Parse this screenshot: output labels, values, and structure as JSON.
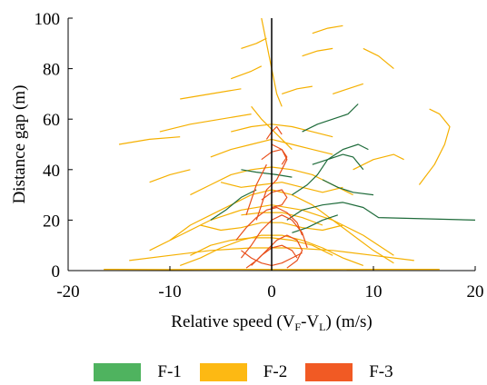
{
  "chart_data": {
    "type": "line",
    "xlabel": "Relative speed (V_F-V_L) (m/s)",
    "ylabel": "Distance gap (m)",
    "xlim": [
      -20,
      20
    ],
    "ylim": [
      0,
      100
    ],
    "x_ticks": [
      -20,
      -10,
      0,
      10,
      20
    ],
    "y_ticks": [
      0,
      20,
      40,
      60,
      80,
      100
    ],
    "x_tick_labels": [
      "-20",
      "-10",
      "0",
      "10",
      "20"
    ],
    "y_tick_labels": [
      "0",
      "20",
      "40",
      "60",
      "80",
      "100"
    ],
    "grid": false,
    "legend_position": "bottom",
    "series": [
      {
        "name": "F-1",
        "color": "#1e6b3a",
        "legend_color": "#4fb35f",
        "trajectories": [
          [
            [
              2,
              30
            ],
            [
              3.5,
              34
            ],
            [
              4.5,
              38
            ],
            [
              5.5,
              44
            ],
            [
              7,
              48
            ],
            [
              8.5,
              50
            ],
            [
              9.5,
              48
            ]
          ],
          [
            [
              1.5,
              20
            ],
            [
              3,
              24
            ],
            [
              5,
              26
            ],
            [
              7,
              27
            ],
            [
              9,
              25
            ],
            [
              10.5,
              21
            ],
            [
              20,
              20
            ]
          ],
          [
            [
              4,
              42
            ],
            [
              5.5,
              44
            ],
            [
              7,
              46
            ],
            [
              8,
              45
            ],
            [
              9,
              40
            ]
          ],
          [
            [
              3,
              55
            ],
            [
              4.5,
              58
            ],
            [
              6,
              60
            ],
            [
              7.5,
              62
            ],
            [
              8.5,
              66
            ]
          ],
          [
            [
              -3,
              40
            ],
            [
              -1.5,
              39
            ],
            [
              0.5,
              38
            ],
            [
              2,
              37
            ]
          ],
          [
            [
              -6,
              20
            ],
            [
              -4.5,
              24
            ],
            [
              -3,
              29
            ],
            [
              -1.5,
              32
            ]
          ],
          [
            [
              5,
              36
            ],
            [
              6.5,
              33
            ],
            [
              8,
              31
            ],
            [
              10,
              30
            ]
          ],
          [
            [
              2,
              15
            ],
            [
              3.5,
              17
            ],
            [
              5,
              20
            ],
            [
              6.5,
              22
            ]
          ]
        ]
      },
      {
        "name": "F-2",
        "color": "#f5b000",
        "legend_color": "#fdb913",
        "trajectories": [
          [
            [
              -16.5,
              0.5
            ],
            [
              -10,
              0.4
            ],
            [
              -3,
              0.5
            ],
            [
              3,
              0.4
            ],
            [
              10,
              0.5
            ],
            [
              16.5,
              0.5
            ]
          ],
          [
            [
              -10,
              12
            ],
            [
              -8,
              18
            ],
            [
              -6,
              22
            ],
            [
              -4,
              26
            ],
            [
              -2,
              30
            ],
            [
              0,
              32
            ],
            [
              2,
              30
            ],
            [
              4,
              26
            ],
            [
              6,
              20
            ],
            [
              8,
              14
            ],
            [
              10,
              8
            ],
            [
              12,
              3
            ]
          ],
          [
            [
              -12,
              8
            ],
            [
              -9,
              14
            ],
            [
              -6,
              20
            ],
            [
              -3,
              24
            ],
            [
              0,
              26
            ],
            [
              3,
              24
            ],
            [
              6,
              20
            ],
            [
              9,
              14
            ],
            [
              12,
              6
            ]
          ],
          [
            [
              -8,
              30
            ],
            [
              -6,
              34
            ],
            [
              -4,
              38
            ],
            [
              -2,
              40
            ],
            [
              0,
              41
            ],
            [
              2,
              40
            ],
            [
              4,
              38
            ],
            [
              6,
              34
            ],
            [
              8,
              30
            ]
          ],
          [
            [
              -6,
              45
            ],
            [
              -4,
              48
            ],
            [
              -2,
              50
            ],
            [
              0,
              52
            ],
            [
              2,
              50
            ],
            [
              4,
              48
            ],
            [
              6,
              46
            ]
          ],
          [
            [
              -4,
              55
            ],
            [
              -2,
              57
            ],
            [
              0,
              58
            ],
            [
              2,
              57
            ],
            [
              4,
              55
            ],
            [
              6,
              53
            ]
          ],
          [
            [
              -14,
              4
            ],
            [
              -10,
              6
            ],
            [
              -6,
              8
            ],
            [
              -2,
              9
            ],
            [
              2,
              9
            ],
            [
              6,
              8
            ],
            [
              10,
              6
            ],
            [
              14,
              4
            ]
          ],
          [
            [
              -9,
              2
            ],
            [
              -7,
              5
            ],
            [
              -5,
              9
            ],
            [
              -3,
              12
            ],
            [
              -1,
              14
            ],
            [
              1,
              14
            ],
            [
              3,
              12
            ],
            [
              5,
              9
            ],
            [
              7,
              5
            ],
            [
              9,
              2
            ]
          ],
          [
            [
              -7,
              18
            ],
            [
              -5,
              16
            ],
            [
              -3,
              17
            ],
            [
              -1,
              19
            ],
            [
              1,
              19
            ],
            [
              3,
              17
            ],
            [
              5,
              16
            ],
            [
              7,
              18
            ]
          ],
          [
            [
              -5,
              35
            ],
            [
              -3,
              33
            ],
            [
              -1,
              34
            ],
            [
              1,
              35
            ],
            [
              3,
              33
            ],
            [
              5,
              31
            ],
            [
              7,
              33
            ]
          ],
          [
            [
              -11,
              55
            ],
            [
              -8,
              58
            ],
            [
              -5,
              60
            ],
            [
              -2,
              62
            ]
          ],
          [
            [
              -15,
              50
            ],
            [
              -12,
              52
            ],
            [
              -9,
              53
            ]
          ],
          [
            [
              -9,
              68
            ],
            [
              -6,
              70
            ],
            [
              -3,
              72
            ]
          ],
          [
            [
              -4,
              76
            ],
            [
              -2,
              79
            ],
            [
              -1,
              81
            ]
          ],
          [
            [
              -3,
              88
            ],
            [
              -1.5,
              90
            ],
            [
              -0.5,
              92
            ]
          ],
          [
            [
              3,
              85
            ],
            [
              4.5,
              87
            ],
            [
              6,
              88
            ]
          ],
          [
            [
              6,
              70
            ],
            [
              7.5,
              72
            ],
            [
              9,
              74
            ]
          ],
          [
            [
              9,
              88
            ],
            [
              10.5,
              85
            ],
            [
              12,
              80
            ]
          ],
          [
            [
              14.5,
              34
            ],
            [
              16,
              42
            ],
            [
              17,
              50
            ],
            [
              17.5,
              57
            ],
            [
              16.5,
              62
            ],
            [
              15.5,
              64
            ]
          ],
          [
            [
              8,
              40
            ],
            [
              10,
              44
            ],
            [
              12,
              46
            ],
            [
              13,
              44
            ]
          ],
          [
            [
              -12,
              35
            ],
            [
              -10,
              38
            ],
            [
              -8,
              40
            ]
          ],
          [
            [
              -1,
              100
            ],
            [
              -0.5,
              90
            ],
            [
              0,
              80
            ],
            [
              0.5,
              70
            ],
            [
              1,
              65
            ]
          ],
          [
            [
              -2,
              65
            ],
            [
              -1,
              60
            ],
            [
              0,
              56
            ],
            [
              1,
              52
            ],
            [
              2,
              48
            ]
          ],
          [
            [
              -8,
              6
            ],
            [
              -6,
              10
            ],
            [
              -4,
              12
            ],
            [
              -2,
              13
            ],
            [
              0,
              13
            ],
            [
              2,
              12
            ],
            [
              4,
              10
            ],
            [
              6,
              6
            ]
          ],
          [
            [
              -3,
              22
            ],
            [
              -1,
              23
            ],
            [
              1,
              23
            ],
            [
              3,
              21
            ],
            [
              5,
              18
            ]
          ],
          [
            [
              1,
              70
            ],
            [
              2.5,
              72
            ],
            [
              4,
              73
            ]
          ],
          [
            [
              4,
              94
            ],
            [
              5.5,
              96
            ],
            [
              7,
              97
            ]
          ]
        ]
      },
      {
        "name": "F-3",
        "color": "#e84e1b",
        "legend_color": "#f15a24",
        "trajectories": [
          [
            [
              -2.5,
              1
            ],
            [
              -1.5,
              4
            ],
            [
              -0.5,
              8
            ],
            [
              0.5,
              12
            ],
            [
              1.5,
              14
            ],
            [
              2.5,
              12
            ],
            [
              3,
              8
            ],
            [
              2.5,
              4
            ],
            [
              1.5,
              1
            ]
          ],
          [
            [
              -3,
              5
            ],
            [
              -2,
              10
            ],
            [
              -1,
              16
            ],
            [
              0,
              20
            ],
            [
              1,
              22
            ],
            [
              2,
              20
            ],
            [
              3,
              15
            ],
            [
              3.5,
              9
            ]
          ],
          [
            [
              -2,
              2
            ],
            [
              -1,
              6
            ],
            [
              0,
              9
            ],
            [
              1,
              10
            ],
            [
              2,
              8
            ],
            [
              2.5,
              5
            ]
          ],
          [
            [
              -1.5,
              20
            ],
            [
              -1,
              26
            ],
            [
              -0.5,
              32
            ],
            [
              0.5,
              36
            ],
            [
              1,
              40
            ],
            [
              1.5,
              44
            ],
            [
              1,
              48
            ],
            [
              0,
              50
            ]
          ],
          [
            [
              -2.5,
              22
            ],
            [
              -2,
              28
            ],
            [
              -1.5,
              34
            ],
            [
              -1,
              38
            ],
            [
              -0.5,
              42
            ]
          ],
          [
            [
              -1,
              44
            ],
            [
              0,
              47
            ],
            [
              1,
              48
            ],
            [
              1.5,
              45
            ],
            [
              1,
              42
            ]
          ],
          [
            [
              -3.5,
              12
            ],
            [
              -2.5,
              17
            ],
            [
              -1.5,
              21
            ],
            [
              -0.5,
              24
            ],
            [
              0.5,
              25
            ],
            [
              1.5,
              23
            ],
            [
              2.5,
              19
            ],
            [
              3,
              14
            ]
          ],
          [
            [
              -1,
              28
            ],
            [
              0,
              31
            ],
            [
              1,
              32
            ],
            [
              1.5,
              29
            ],
            [
              1,
              26
            ],
            [
              0,
              25
            ]
          ],
          [
            [
              -0.5,
              52
            ],
            [
              0,
              55
            ],
            [
              0.5,
              57
            ],
            [
              1,
              54
            ]
          ],
          [
            [
              -3,
              8
            ],
            [
              -2,
              5
            ],
            [
              -1,
              3
            ],
            [
              0,
              2
            ],
            [
              1,
              3
            ],
            [
              2,
              5
            ],
            [
              3,
              7
            ]
          ]
        ]
      }
    ]
  }
}
